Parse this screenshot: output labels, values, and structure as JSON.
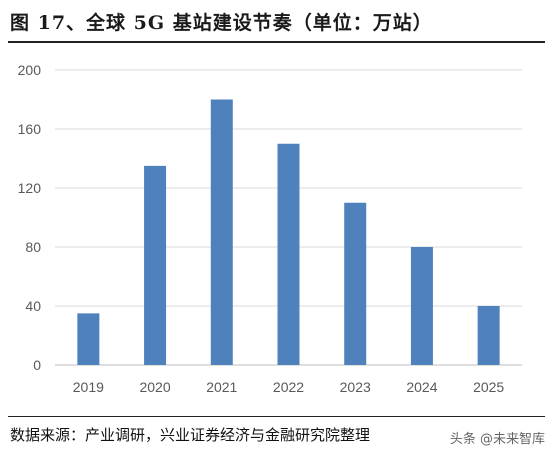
{
  "title": "图 17、全球 5G 基站建设节奏（单位：万站）",
  "source": "数据来源：产业调研，兴业证券经济与金融研究院整理",
  "watermark": "头条 @未来智库",
  "colors": {
    "bar": "#4f81bd",
    "grid": "#d9d9d9",
    "text": "#595959"
  },
  "chart_data": {
    "type": "bar",
    "title": "图 17、全球 5G 基站建设节奏（单位：万站）",
    "categories": [
      "2019",
      "2020",
      "2021",
      "2022",
      "2023",
      "2024",
      "2025"
    ],
    "values": [
      35,
      135,
      180,
      150,
      110,
      80,
      40
    ],
    "yticks": [
      "0",
      "40",
      "80",
      "120",
      "160",
      "200"
    ],
    "ylim": [
      0,
      200
    ],
    "xlabel": "",
    "ylabel": "",
    "grid": true,
    "legend": "none"
  }
}
